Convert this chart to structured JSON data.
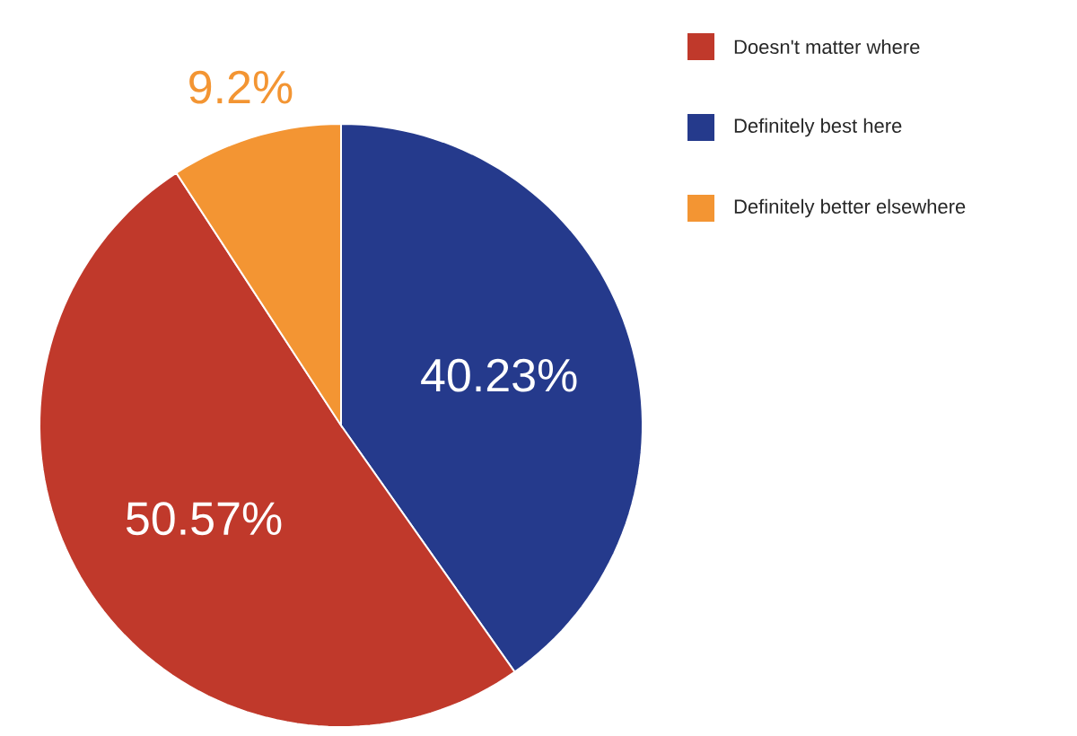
{
  "chart_data": {
    "type": "pie",
    "categories": [
      "Definitely best here",
      "Doesn't matter where",
      "Definitely better elsewhere"
    ],
    "values": [
      40.23,
      50.57,
      9.2
    ],
    "colors": [
      "#253a8c",
      "#c0392b",
      "#f39533"
    ],
    "value_labels": [
      "40.23%",
      "50.57%",
      "9.2%"
    ],
    "legend": "top right"
  }
}
